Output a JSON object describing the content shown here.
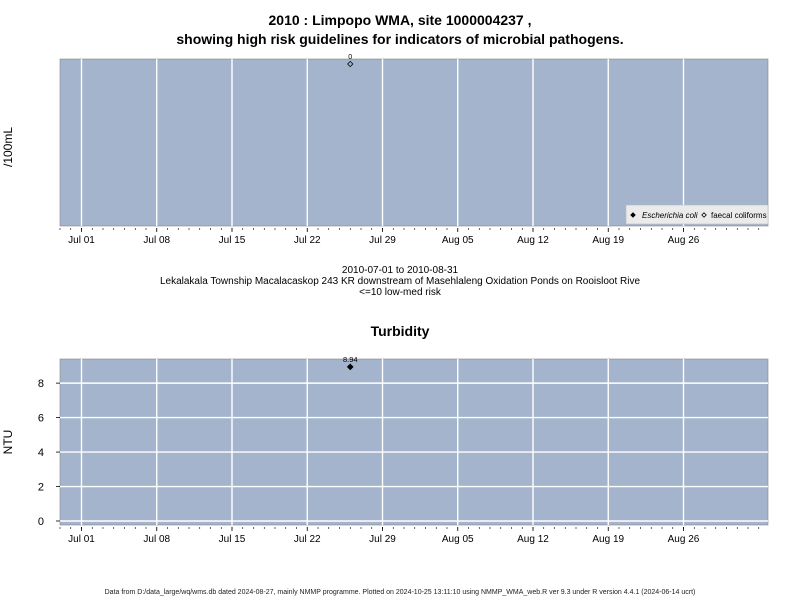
{
  "title_line1": "2010 : Limpopo WMA, site 1000004237 ,",
  "title_line2": "showing high risk guidelines for indicators of microbial pathogens.",
  "subtitle": {
    "date_range": "2010-07-01 to 2010-08-31",
    "site_description": "Lekalakala Township Macalacaskop 243 KR downstream of Masehlaleng Oxidation Ponds on Rooisloot Rive",
    "risk_note": "<=10 low-med risk"
  },
  "footer": "Data from D:/data_large/wq/wms.db dated 2024-08-27, mainly NMMP programme. Plotted on 2024-10-25 13:11:10 using NMMP_WMA_web.R ver 9.3 under R version 4.4.1 (2024-06-14 ucrt)",
  "colors": {
    "panel": "#a3b4cc",
    "grid": "#ffffff",
    "point": "#000000"
  },
  "chart_data": [
    {
      "type": "scatter",
      "title": "",
      "ylabel": "/100mL",
      "x_ticks": [
        "Jul 01",
        "Jul 08",
        "Jul 15",
        "Jul 22",
        "Jul 29",
        "Aug 05",
        "Aug 12",
        "Aug 19",
        "Aug 26"
      ],
      "series": [
        {
          "name": "Escherichia coli",
          "marker": "filled-diamond",
          "points": []
        },
        {
          "name": "faecal coliforms",
          "marker": "open-diamond",
          "points": [
            {
              "x": "2010-07-26",
              "y": 0,
              "label": "0"
            }
          ]
        }
      ],
      "legend": "bottom-right",
      "grid": true
    },
    {
      "type": "scatter",
      "title": "Turbidity",
      "ylabel": "NTU",
      "ylim": [
        0,
        9.4
      ],
      "y_ticks": [
        "0",
        "2",
        "4",
        "6",
        "8"
      ],
      "x_ticks": [
        "Jul 01",
        "Jul 08",
        "Jul 15",
        "Jul 22",
        "Jul 29",
        "Aug 05",
        "Aug 12",
        "Aug 19",
        "Aug 26"
      ],
      "series": [
        {
          "name": "",
          "marker": "filled-diamond",
          "points": [
            {
              "x": "2010-07-26",
              "y": 8.94,
              "label": "8.94"
            }
          ]
        }
      ],
      "grid": true
    }
  ]
}
